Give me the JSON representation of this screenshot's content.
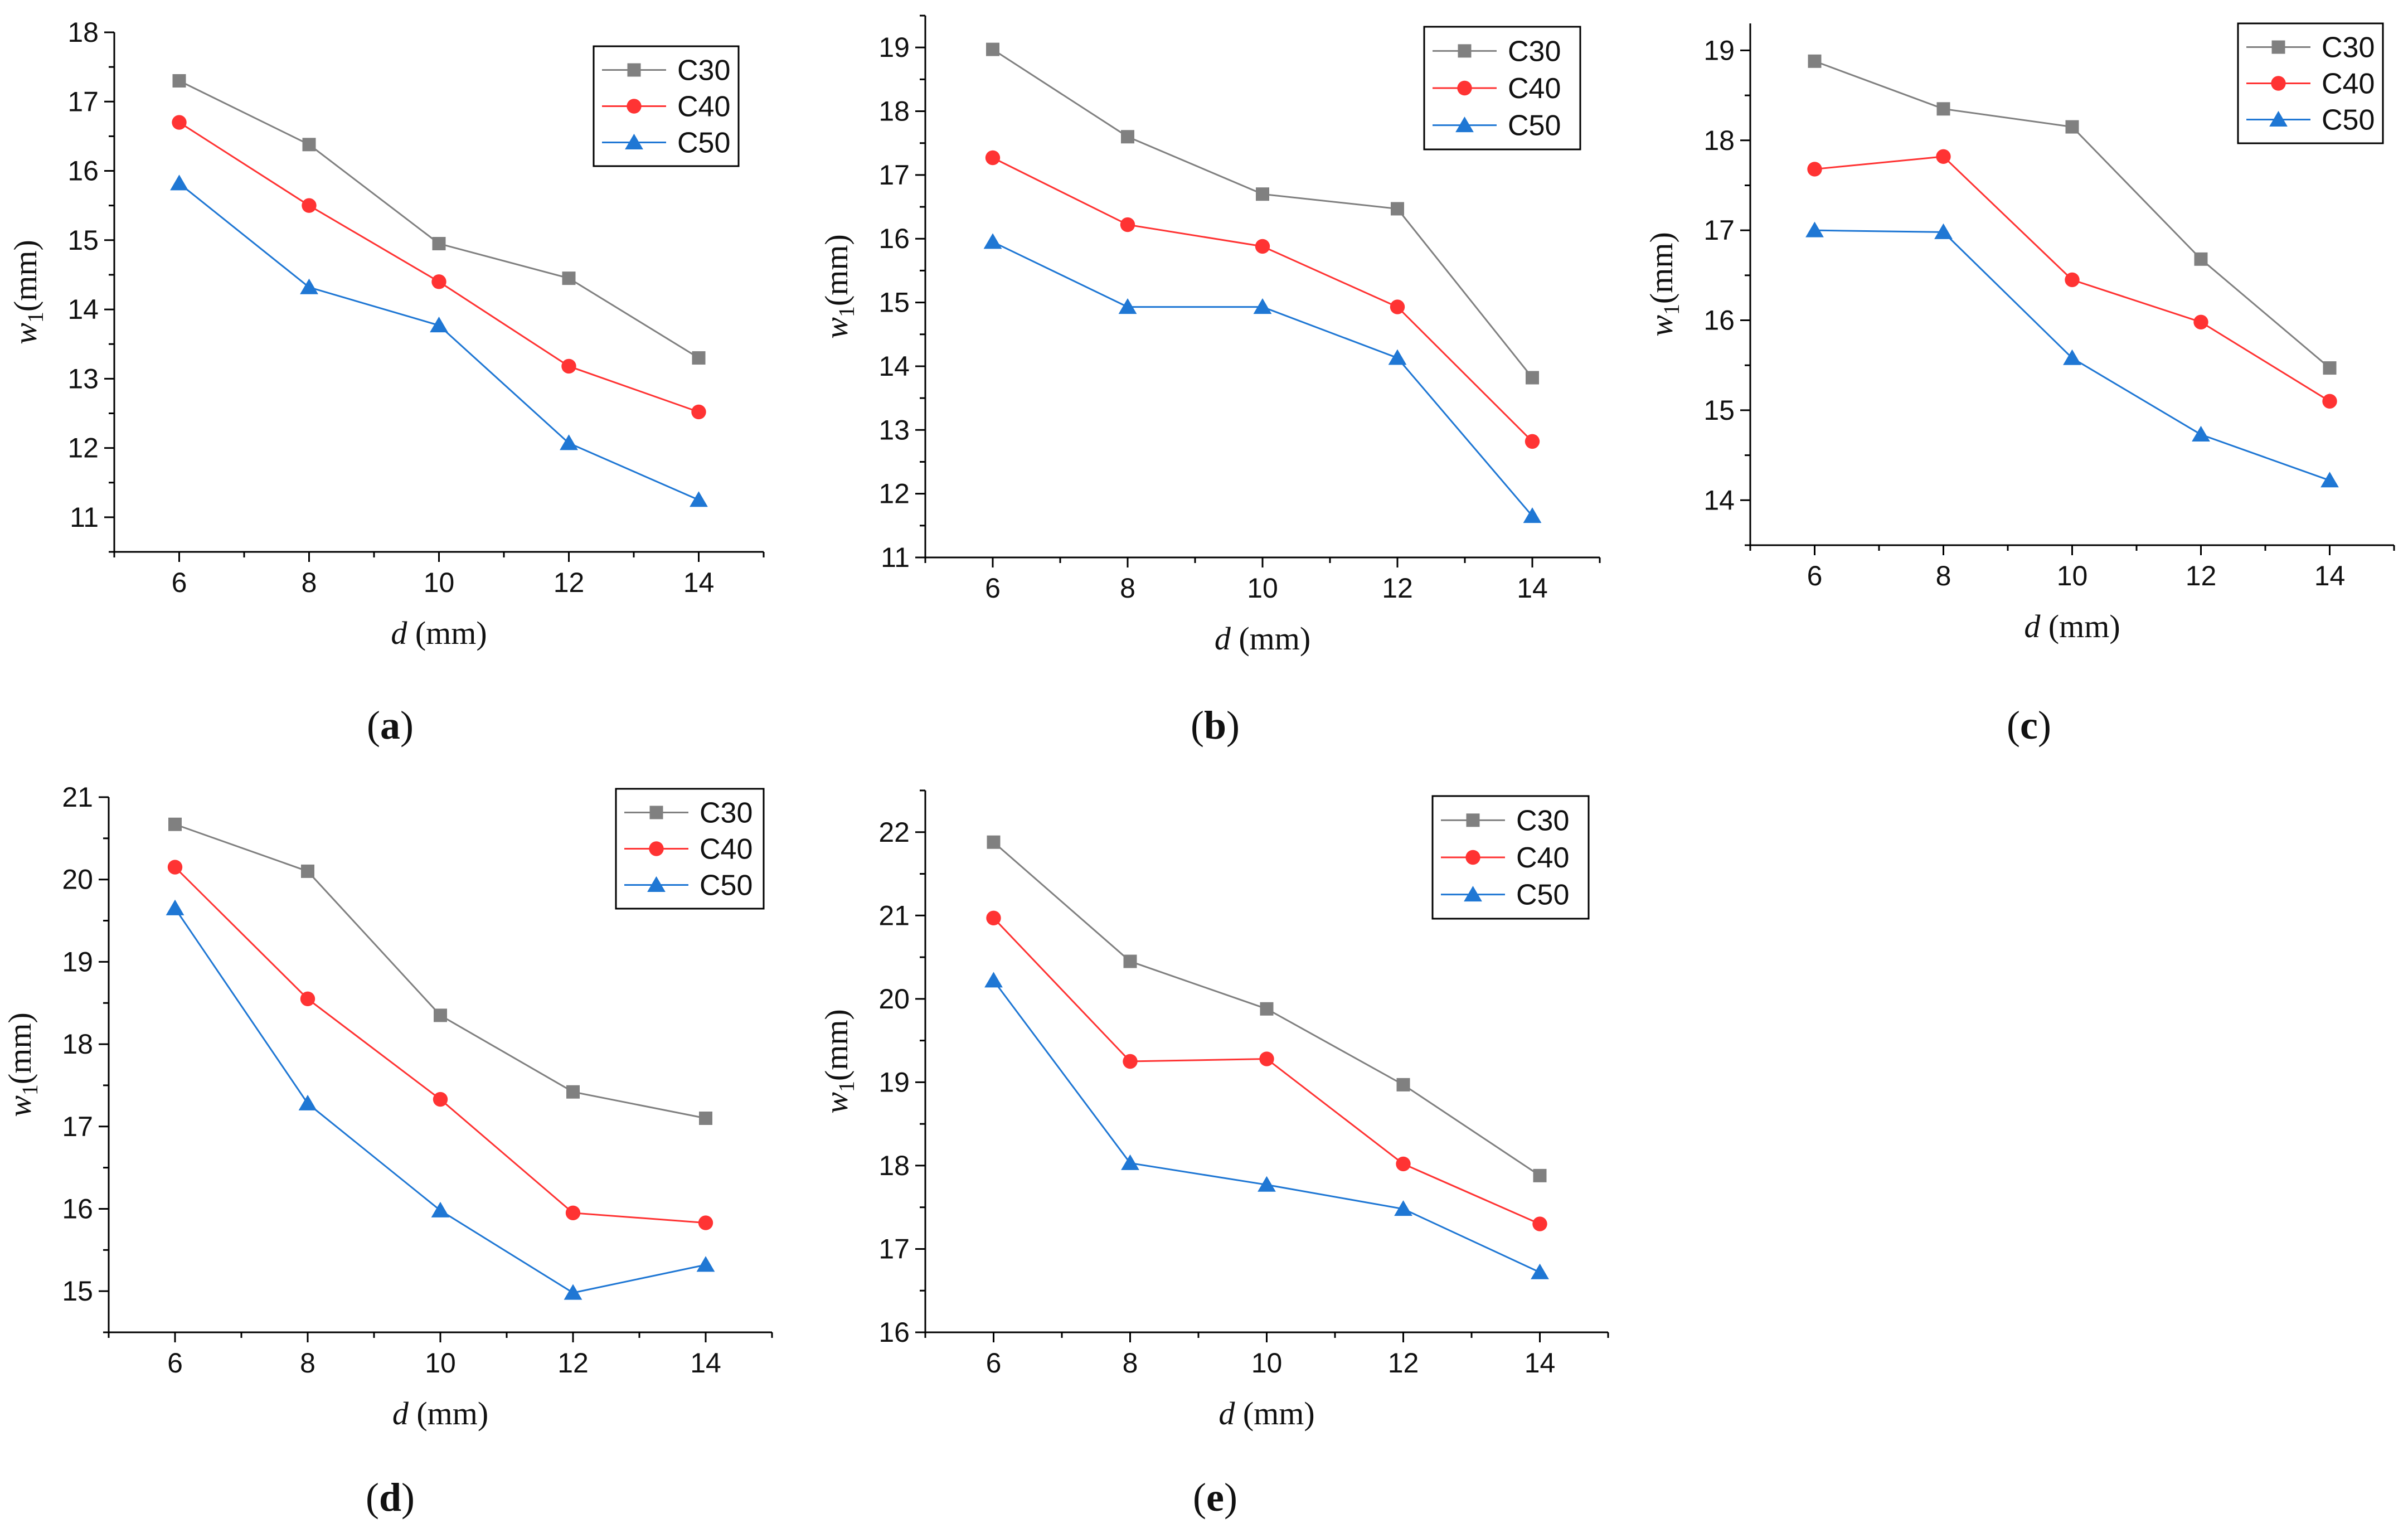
{
  "figure": {
    "panels": [
      "a",
      "b",
      "c",
      "d",
      "e"
    ]
  },
  "chart_data": [
    {
      "type": "line",
      "panel_label": "a",
      "x": [
        6,
        8,
        10,
        12,
        14
      ],
      "xticks": [
        "6",
        "8",
        "10",
        "12",
        "14"
      ],
      "xlim": [
        5,
        15
      ],
      "ylim": [
        10.5,
        18
      ],
      "yticks": [
        11,
        12,
        13,
        14,
        15,
        16,
        17,
        18
      ],
      "xlabel": {
        "var": "d",
        "unit": " (mm)"
      },
      "ylabel": {
        "var": "w",
        "sub": "1",
        "unit": "(mm)"
      },
      "legend_position": "top-right",
      "series": [
        {
          "name": "C30",
          "marker": "square",
          "color": "#808080",
          "values": [
            17.3,
            16.38,
            14.95,
            14.45,
            13.3
          ]
        },
        {
          "name": "C40",
          "marker": "circle",
          "color": "#ff3333",
          "values": [
            16.7,
            15.5,
            14.4,
            13.18,
            12.52
          ]
        },
        {
          "name": "C50",
          "marker": "triangle",
          "color": "#1f77d4",
          "values": [
            15.82,
            14.32,
            13.77,
            12.07,
            11.25
          ]
        }
      ]
    },
    {
      "type": "line",
      "panel_label": "b",
      "x": [
        6,
        8,
        10,
        12,
        14
      ],
      "xticks": [
        "6",
        "8",
        "10",
        "12",
        "14"
      ],
      "xlim": [
        5,
        15
      ],
      "ylim": [
        11,
        19.5
      ],
      "yticks": [
        11,
        12,
        13,
        14,
        15,
        16,
        17,
        18,
        19
      ],
      "xlabel": {
        "var": "d",
        "unit": " (mm)"
      },
      "ylabel": {
        "var": "w",
        "sub": "1",
        "unit": "(mm)"
      },
      "legend_position": "top-right",
      "series": [
        {
          "name": "C30",
          "marker": "square",
          "color": "#808080",
          "values": [
            18.97,
            17.6,
            16.7,
            16.47,
            13.82
          ]
        },
        {
          "name": "C40",
          "marker": "circle",
          "color": "#ff3333",
          "values": [
            17.27,
            16.22,
            15.88,
            14.93,
            12.82
          ]
        },
        {
          "name": "C50",
          "marker": "triangle",
          "color": "#1f77d4",
          "values": [
            15.95,
            14.93,
            14.93,
            14.13,
            11.65
          ]
        }
      ]
    },
    {
      "type": "line",
      "panel_label": "c",
      "x": [
        6,
        8,
        10,
        12,
        14
      ],
      "xticks": [
        "6",
        "8",
        "10",
        "12",
        "14"
      ],
      "xlim": [
        5,
        15
      ],
      "ylim": [
        13.5,
        19.3
      ],
      "yticks": [
        14,
        15,
        16,
        17,
        18,
        19
      ],
      "xlabel": {
        "var": "d",
        "unit": " (mm)"
      },
      "ylabel": {
        "var": "w",
        "sub": "1",
        "unit": "(mm)"
      },
      "legend_position": "top-right",
      "series": [
        {
          "name": "C30",
          "marker": "square",
          "color": "#808080",
          "values": [
            18.88,
            18.35,
            18.15,
            16.68,
            15.47
          ]
        },
        {
          "name": "C40",
          "marker": "circle",
          "color": "#ff3333",
          "values": [
            17.68,
            17.82,
            16.45,
            15.98,
            15.1
          ]
        },
        {
          "name": "C50",
          "marker": "triangle",
          "color": "#1f77d4",
          "values": [
            17.0,
            16.98,
            15.58,
            14.73,
            14.22
          ]
        }
      ]
    },
    {
      "type": "line",
      "panel_label": "d",
      "x": [
        6,
        8,
        10,
        12,
        14
      ],
      "xticks": [
        "6",
        "8",
        "10",
        "12",
        "14"
      ],
      "xlim": [
        5,
        15
      ],
      "ylim": [
        14.5,
        21
      ],
      "yticks": [
        15,
        16,
        17,
        18,
        19,
        20,
        21
      ],
      "xlabel": {
        "var": "d",
        "unit": " (mm)"
      },
      "ylabel": {
        "var": "w",
        "sub": "1",
        "unit": "(mm)"
      },
      "legend_position": "top-right",
      "series": [
        {
          "name": "C30",
          "marker": "square",
          "color": "#808080",
          "values": [
            20.67,
            20.1,
            18.35,
            17.42,
            17.1
          ]
        },
        {
          "name": "C40",
          "marker": "circle",
          "color": "#ff3333",
          "values": [
            20.15,
            18.55,
            17.33,
            15.95,
            15.83
          ]
        },
        {
          "name": "C50",
          "marker": "triangle",
          "color": "#1f77d4",
          "values": [
            19.65,
            17.28,
            15.98,
            14.98,
            15.32
          ]
        }
      ]
    },
    {
      "type": "line",
      "panel_label": "e",
      "x": [
        6,
        8,
        10,
        12,
        14
      ],
      "xticks": [
        "6",
        "8",
        "10",
        "12",
        "14"
      ],
      "xlim": [
        5,
        15
      ],
      "ylim": [
        16,
        22.5
      ],
      "yticks": [
        16,
        17,
        18,
        19,
        20,
        21,
        22
      ],
      "xlabel": {
        "var": "d",
        "unit": " (mm)"
      },
      "ylabel": {
        "var": "w",
        "sub": "1",
        "unit": "(mm)"
      },
      "legend_position": "top-right",
      "series": [
        {
          "name": "C30",
          "marker": "square",
          "color": "#808080",
          "values": [
            21.88,
            20.45,
            19.88,
            18.97,
            17.88
          ]
        },
        {
          "name": "C40",
          "marker": "circle",
          "color": "#ff3333",
          "values": [
            20.97,
            19.25,
            19.28,
            18.02,
            17.3
          ]
        },
        {
          "name": "C50",
          "marker": "triangle",
          "color": "#1f77d4",
          "values": [
            20.22,
            18.03,
            17.77,
            17.48,
            16.72
          ]
        }
      ]
    }
  ]
}
